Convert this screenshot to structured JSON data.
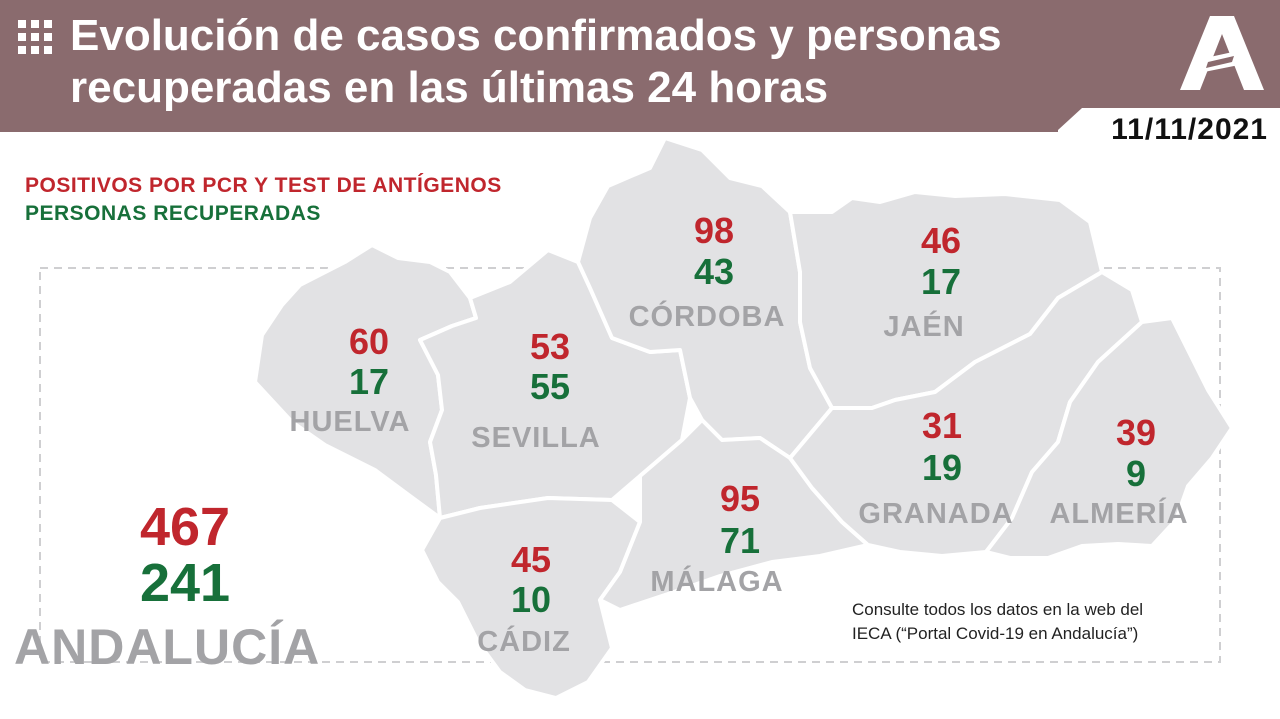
{
  "header": {
    "title_line1": "Evolución de casos confirmados y personas",
    "title_line2": "recuperadas en las últimas 24 horas",
    "date": "11/11/2021",
    "background_color": "#8a6b6e"
  },
  "legend": {
    "positives_label": "POSITIVOS POR PCR Y TEST DE ANTÍGENOS",
    "recovered_label": "PERSONAS RECUPERADAS",
    "positives_color": "#c0262d",
    "recovered_color": "#17703a"
  },
  "provinces": [
    {
      "name": "HUELVA",
      "positives": "60",
      "recovered": "17"
    },
    {
      "name": "SEVILLA",
      "positives": "53",
      "recovered": "55"
    },
    {
      "name": "CÓRDOBA",
      "positives": "98",
      "recovered": "43"
    },
    {
      "name": "JAÉN",
      "positives": "46",
      "recovered": "17"
    },
    {
      "name": "CÁDIZ",
      "positives": "45",
      "recovered": "10"
    },
    {
      "name": "MÁLAGA",
      "positives": "95",
      "recovered": "71"
    },
    {
      "name": "GRANADA",
      "positives": "31",
      "recovered": "19"
    },
    {
      "name": "ALMERÍA",
      "positives": "39",
      "recovered": "9"
    }
  ],
  "total": {
    "name": "ANDALUCÍA",
    "positives": "467",
    "recovered": "241"
  },
  "footnote": {
    "line1": "Consulte todos los datos en la web del",
    "line2": "IECA (“Portal Covid-19 en Andalucía”)"
  },
  "icons": {
    "menu": "grid-icon",
    "logo": "junta-andalucia-logo"
  }
}
